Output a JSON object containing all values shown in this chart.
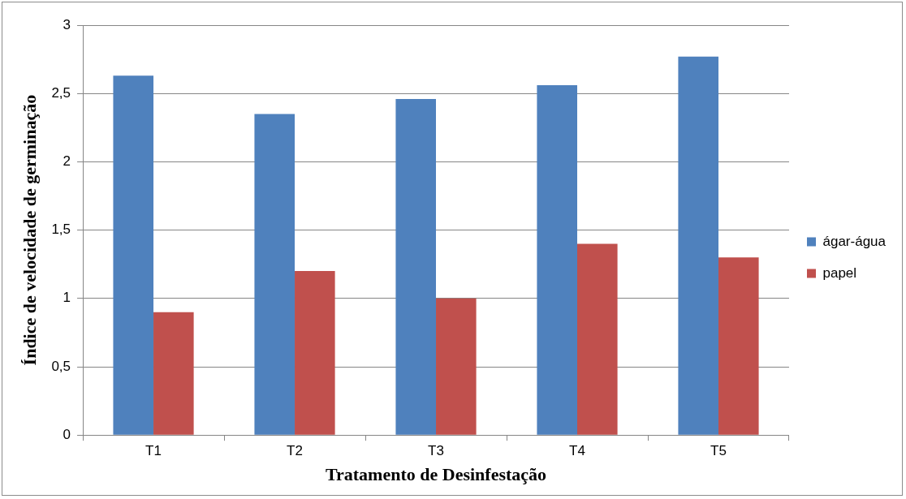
{
  "chart_data": {
    "type": "bar",
    "xlabel": "Tratamento de Desinfestação",
    "ylabel": "Índice de velocidade de germinação",
    "categories": [
      "T1",
      "T2",
      "T3",
      "T4",
      "T5"
    ],
    "series": [
      {
        "name": "ágar-água",
        "color": "#4f81bd",
        "values": [
          2.63,
          2.35,
          2.46,
          2.56,
          2.77
        ]
      },
      {
        "name": "papel",
        "color": "#c0504d",
        "values": [
          0.9,
          1.2,
          1.0,
          1.4,
          1.3
        ]
      }
    ],
    "ylim": [
      0,
      3
    ],
    "yticks": [
      0,
      {
        "value": 0.5,
        "label": "0,5"
      },
      1,
      {
        "value": 1.5,
        "label": "1,5"
      },
      2,
      {
        "value": 2.5,
        "label": "2,5"
      },
      3
    ],
    "grid": "y",
    "legend": "right"
  }
}
